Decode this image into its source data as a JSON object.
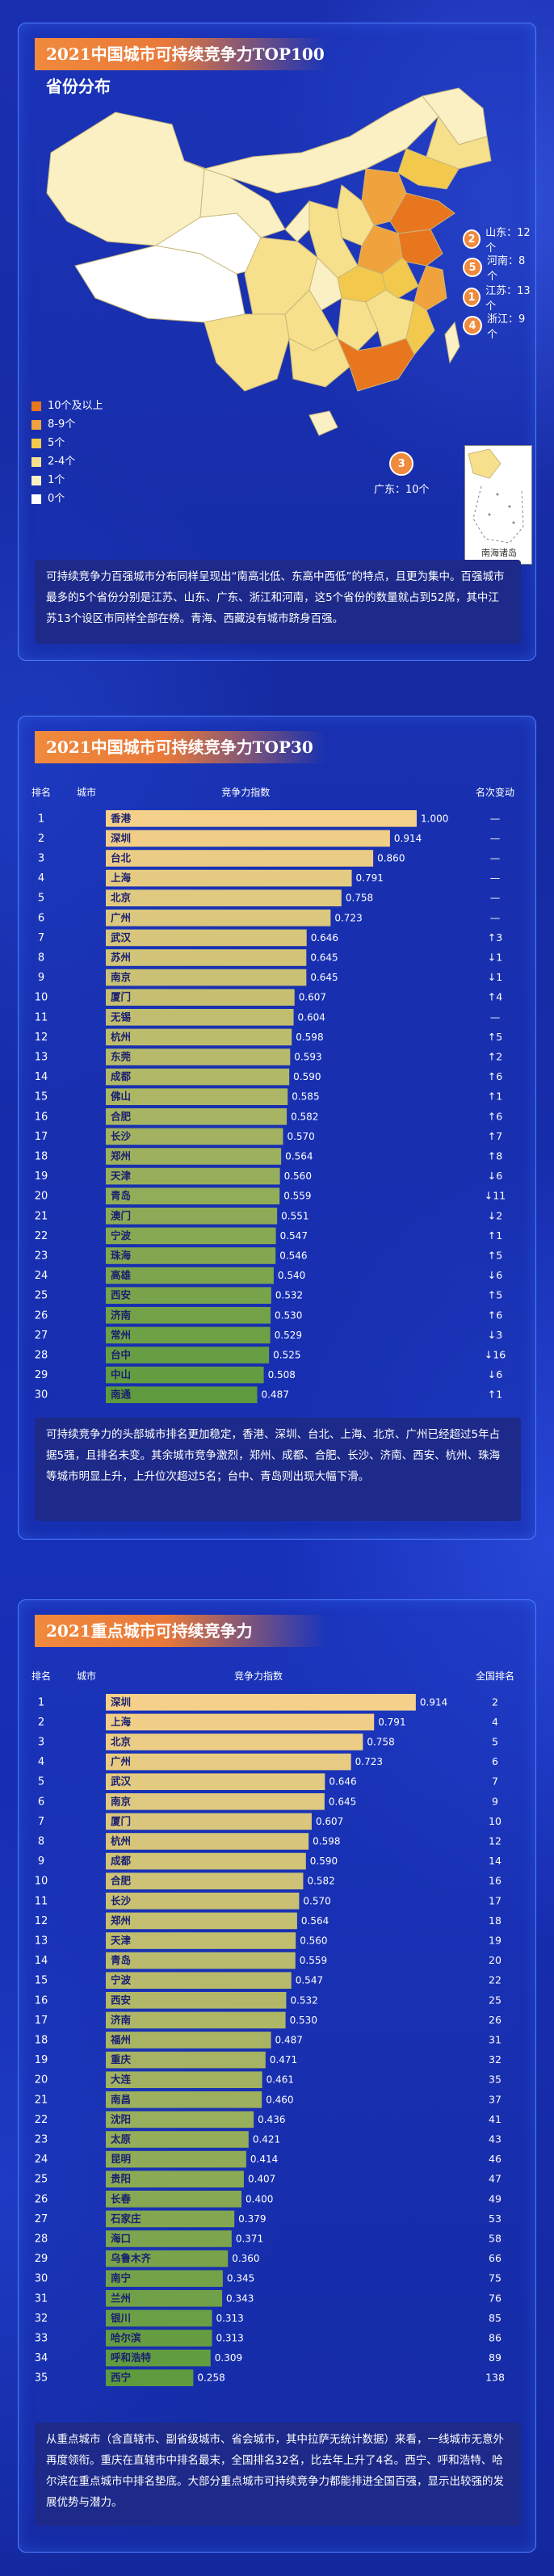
{
  "section1": {
    "title": "2021中国城市可持续竞争力TOP100省份分布",
    "legend": [
      {
        "label": "10个及以上",
        "color": "#e8761f"
      },
      {
        "label": "8-9个",
        "color": "#f0a23c"
      },
      {
        "label": "5个",
        "color": "#f2c94c"
      },
      {
        "label": "2-4个",
        "color": "#f6e08c"
      },
      {
        "label": "1个",
        "color": "#fbf0c4"
      },
      {
        "label": "0个",
        "color": "#ffffff"
      }
    ],
    "callouts": [
      {
        "num": "2",
        "label": "山东：12个"
      },
      {
        "num": "5",
        "label": "河南：8个"
      },
      {
        "num": "1",
        "label": "江苏：13个"
      },
      {
        "num": "4",
        "label": "浙江：9个"
      },
      {
        "num": "3",
        "label": "广东：10个"
      }
    ],
    "inset_label": "南海诸岛",
    "note": "可持续竞争力百强城市分布同样呈现出“南高北低、东高中西低”的特点，且更为集中。百强城市最多的5个省份分别是江苏、山东、广东、浙江和河南，这5个省份的数量就占到52席，其中江苏13个设区市同样全部在榜。青海、西藏没有城市跻身百强。"
  },
  "section2": {
    "title": "2021中国城市可持续竞争力TOP30",
    "headers": {
      "rank": "排名",
      "city": "城市",
      "index": "竞争力指数",
      "change": "名次变动"
    },
    "note": "可持续竞争力的头部城市排名更加稳定，香港、深圳、台北、上海、北京、广州已经超过5年占据5强，且排名未变。其余城市竞争激烈，郑州、成都、合肥、长沙、济南、西安、杭州、珠海等城市明显上升，上升位次超过5名；台中、青岛则出现大幅下滑。"
  },
  "section3": {
    "title": "2021重点城市可持续竞争力",
    "headers": {
      "rank": "排名",
      "city": "城市",
      "index": "竞争力指数",
      "change": "全国排名"
    },
    "note": "从重点城市（含直辖市、副省级城市、省会城市，其中拉萨无统计数据）来看，一线城市无意外再度领衔。重庆在直辖市中排名最末，全国排名32名，比去年上升了4名。西宁、呼和浩特、哈尔滨在重点城市中排名垫底。大部分重点城市可持续竞争力都能排进全国百强，显示出较强的发展优势与潜力。"
  },
  "chart_data": [
    {
      "type": "bar",
      "orientation": "horizontal",
      "title": "2021中国城市可持续竞争力TOP30",
      "xlim": [
        0,
        1
      ],
      "ranks": [
        1,
        2,
        3,
        4,
        5,
        6,
        7,
        8,
        9,
        10,
        11,
        12,
        13,
        14,
        15,
        16,
        17,
        18,
        19,
        20,
        21,
        22,
        23,
        24,
        25,
        26,
        27,
        28,
        29,
        30
      ],
      "categories": [
        "香港",
        "深圳",
        "台北",
        "上海",
        "北京",
        "广州",
        "武汉",
        "苏州",
        "南京",
        "厦门",
        "无锡",
        "杭州",
        "东莞",
        "成都",
        "佛山",
        "合肥",
        "长沙",
        "郑州",
        "天津",
        "青岛",
        "澳门",
        "宁波",
        "珠海",
        "高雄",
        "西安",
        "济南",
        "常州",
        "台中",
        "中山",
        "南通"
      ],
      "values": [
        1.0,
        0.914,
        0.86,
        0.791,
        0.758,
        0.723,
        0.646,
        0.645,
        0.645,
        0.607,
        0.604,
        0.598,
        0.593,
        0.59,
        0.585,
        0.582,
        0.57,
        0.564,
        0.56,
        0.559,
        0.551,
        0.547,
        0.546,
        0.54,
        0.532,
        0.53,
        0.529,
        0.525,
        0.508,
        0.487
      ],
      "rank_change": [
        "—",
        "—",
        "—",
        "—",
        "—",
        "—",
        "↑3",
        "↓1",
        "↓1",
        "↑4",
        "—",
        "↑5",
        "↑2",
        "↑6",
        "↑1",
        "↑6",
        "↑7",
        "↑8",
        "↓6",
        "↓11",
        "↓2",
        "↑1",
        "↑5",
        "↓6",
        "↑5",
        "↑6",
        "↓3",
        "↓16",
        "↓6",
        "↑1"
      ]
    },
    {
      "type": "bar",
      "orientation": "horizontal",
      "title": "2021重点城市可持续竞争力",
      "xlim": [
        0,
        1
      ],
      "ranks": [
        1,
        2,
        3,
        4,
        5,
        6,
        7,
        8,
        9,
        10,
        11,
        12,
        13,
        14,
        15,
        16,
        17,
        18,
        19,
        20,
        21,
        22,
        23,
        24,
        25,
        26,
        27,
        28,
        29,
        30,
        31,
        32,
        33,
        34,
        35
      ],
      "categories": [
        "深圳",
        "上海",
        "北京",
        "广州",
        "武汉",
        "南京",
        "厦门",
        "杭州",
        "成都",
        "合肥",
        "长沙",
        "郑州",
        "天津",
        "青岛",
        "宁波",
        "西安",
        "济南",
        "福州",
        "重庆",
        "大连",
        "南昌",
        "沈阳",
        "太原",
        "昆明",
        "贵阳",
        "长春",
        "石家庄",
        "海口",
        "乌鲁木齐",
        "南宁",
        "兰州",
        "银川",
        "哈尔滨",
        "呼和浩特",
        "西宁"
      ],
      "values": [
        0.914,
        0.791,
        0.758,
        0.723,
        0.646,
        0.645,
        0.607,
        0.598,
        0.59,
        0.582,
        0.57,
        0.564,
        0.56,
        0.559,
        0.547,
        0.532,
        0.53,
        0.487,
        0.471,
        0.461,
        0.46,
        0.436,
        0.421,
        0.414,
        0.407,
        0.4,
        0.379,
        0.371,
        0.36,
        0.345,
        0.343,
        0.313,
        0.313,
        0.309,
        0.258
      ],
      "national_rank": [
        "2",
        "4",
        "5",
        "6",
        "7",
        "9",
        "10",
        "12",
        "14",
        "16",
        "17",
        "18",
        "19",
        "20",
        "22",
        "25",
        "26",
        "31",
        "32",
        "35",
        "37",
        "41",
        "43",
        "46",
        "47",
        "49",
        "53",
        "58",
        "66",
        "75",
        "76",
        "85",
        "86",
        "89",
        "138"
      ]
    }
  ]
}
